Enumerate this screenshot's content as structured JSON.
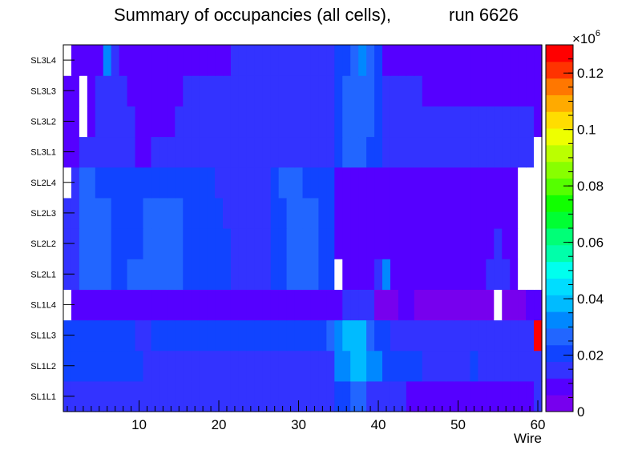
{
  "chart_data": {
    "type": "heatmap",
    "title": "Summary of occupancies (all cells),",
    "run_label": "run 6626",
    "xlabel": "Wire",
    "ylabel": "",
    "x_range": [
      0.5,
      60.5
    ],
    "x_ticks": [
      "10",
      "20",
      "30",
      "40",
      "50",
      "60"
    ],
    "rows": [
      "SL1L1",
      "SL1L2",
      "SL1L3",
      "SL1L4",
      "SL2L1",
      "SL2L2",
      "SL2L3",
      "SL2L4",
      "SL3L1",
      "SL3L2",
      "SL3L3",
      "SL3L4"
    ],
    "z_range": [
      0,
      130000
    ],
    "z_multiplier": "×10",
    "z_exponent": "6",
    "z_ticks": [
      "0",
      "0.02",
      "0.04",
      "0.06",
      "0.08",
      "0.1",
      "0.12"
    ],
    "palette": [
      "#7700ee",
      "#5500ff",
      "#3333ff",
      "#1144ff",
      "#2266ff",
      "#0088ff",
      "#00bbff",
      "#00ddff",
      "#00ffee",
      "#00ffaa",
      "#00ff77",
      "#00ff33",
      "#11ff00",
      "#55ff00",
      "#88ff00",
      "#bbff00",
      "#eeff00",
      "#ffdd00",
      "#ffaa00",
      "#ff7700",
      "#ff3300",
      "#ff0000"
    ],
    "zero_color": "#ffffff",
    "values": [
      [
        15000,
        15000,
        15000,
        15000,
        15000,
        15000,
        15000,
        12000,
        12000,
        12000,
        12000,
        12000,
        12000,
        12000,
        12000,
        12000,
        12000,
        12000,
        12000,
        12000,
        12000,
        12000,
        12000,
        12000,
        12000,
        12000,
        12000,
        12000,
        12000,
        12000,
        12000,
        12000,
        12000,
        12000,
        20000,
        20000,
        24000,
        26000,
        15000,
        12000,
        12000,
        12000,
        12000,
        8000,
        8000,
        8000,
        8000,
        8000,
        8000,
        8000,
        8000,
        8000,
        8000,
        8000,
        8000,
        8000,
        8000,
        10000,
        10000,
        12000
      ],
      [
        20000,
        20000,
        20000,
        20000,
        20000,
        20000,
        20000,
        20000,
        20000,
        20000,
        15000,
        15000,
        15000,
        15000,
        15000,
        15000,
        15000,
        15000,
        15000,
        15000,
        15000,
        15000,
        15000,
        15000,
        15000,
        15000,
        15000,
        15000,
        15000,
        15000,
        15000,
        15000,
        15000,
        15000,
        30000,
        30000,
        38000,
        38000,
        30000,
        30000,
        20000,
        20000,
        20000,
        20000,
        20000,
        15000,
        15000,
        15000,
        15000,
        15000,
        15000,
        20000,
        15000,
        15000,
        15000,
        15000,
        15000,
        15000,
        15000,
        15000
      ],
      [
        20000,
        20000,
        20000,
        20000,
        20000,
        20000,
        20000,
        20000,
        20000,
        15000,
        15000,
        20000,
        20000,
        20000,
        20000,
        20000,
        20000,
        20000,
        20000,
        20000,
        20000,
        20000,
        20000,
        20000,
        20000,
        20000,
        20000,
        20000,
        20000,
        20000,
        20000,
        20000,
        20000,
        25000,
        30000,
        38000,
        38000,
        38000,
        28000,
        20000,
        20000,
        15000,
        15000,
        15000,
        15000,
        15000,
        15000,
        15000,
        15000,
        15000,
        15000,
        15000,
        15000,
        15000,
        15000,
        15000,
        15000,
        15000,
        15000,
        130000
      ],
      [
        0,
        8000,
        8000,
        8000,
        8000,
        8000,
        8000,
        8000,
        8000,
        8000,
        8000,
        8000,
        8000,
        8000,
        8000,
        8000,
        8000,
        8000,
        8000,
        8000,
        8000,
        8000,
        8000,
        8000,
        8000,
        8000,
        8000,
        8000,
        8000,
        8000,
        8000,
        8000,
        8000,
        8000,
        8000,
        12000,
        12000,
        12000,
        12000,
        5000,
        5000,
        5000,
        8000,
        8000,
        5000,
        5000,
        5000,
        5000,
        5000,
        5000,
        5000,
        5000,
        5000,
        5000,
        0,
        5000,
        5000,
        5000,
        8000,
        8000
      ],
      [
        15000,
        15000,
        25000,
        25000,
        25000,
        25000,
        20000,
        20000,
        25000,
        25000,
        25000,
        25000,
        25000,
        25000,
        25000,
        20000,
        20000,
        20000,
        20000,
        20000,
        20000,
        12000,
        12000,
        12000,
        12000,
        12000,
        20000,
        20000,
        25000,
        25000,
        25000,
        25000,
        20000,
        20000,
        0,
        8000,
        8000,
        8000,
        8000,
        12000,
        30000,
        8000,
        8000,
        8000,
        8000,
        8000,
        8000,
        8000,
        8000,
        8000,
        8000,
        8000,
        8000,
        12000,
        12000,
        15000,
        8000,
        0,
        0,
        0
      ],
      [
        15000,
        15000,
        25000,
        25000,
        25000,
        25000,
        20000,
        20000,
        20000,
        20000,
        25000,
        25000,
        25000,
        25000,
        25000,
        20000,
        20000,
        20000,
        20000,
        20000,
        20000,
        12000,
        12000,
        12000,
        12000,
        12000,
        20000,
        20000,
        25000,
        25000,
        25000,
        25000,
        20000,
        20000,
        8000,
        8000,
        8000,
        8000,
        8000,
        8000,
        8000,
        8000,
        8000,
        8000,
        8000,
        8000,
        8000,
        8000,
        8000,
        8000,
        8000,
        8000,
        8000,
        8000,
        12000,
        8000,
        8000,
        0,
        0,
        0
      ],
      [
        12000,
        15000,
        25000,
        25000,
        25000,
        25000,
        20000,
        20000,
        20000,
        20000,
        25000,
        25000,
        25000,
        25000,
        25000,
        20000,
        20000,
        20000,
        20000,
        20000,
        12000,
        12000,
        12000,
        12000,
        12000,
        12000,
        20000,
        20000,
        25000,
        25000,
        25000,
        25000,
        20000,
        20000,
        8000,
        8000,
        8000,
        8000,
        8000,
        8000,
        8000,
        8000,
        8000,
        8000,
        8000,
        8000,
        8000,
        8000,
        8000,
        8000,
        8000,
        8000,
        8000,
        8000,
        8000,
        8000,
        8000,
        0,
        0,
        0
      ],
      [
        0,
        15000,
        25000,
        25000,
        20000,
        20000,
        20000,
        20000,
        20000,
        20000,
        20000,
        20000,
        20000,
        20000,
        20000,
        20000,
        20000,
        20000,
        20000,
        12000,
        12000,
        12000,
        12000,
        12000,
        12000,
        12000,
        20000,
        25000,
        25000,
        25000,
        20000,
        20000,
        20000,
        20000,
        8000,
        8000,
        8000,
        8000,
        8000,
        8000,
        8000,
        8000,
        8000,
        8000,
        8000,
        8000,
        8000,
        8000,
        8000,
        8000,
        8000,
        8000,
        8000,
        8000,
        8000,
        8000,
        8000,
        0,
        0,
        0
      ],
      [
        8000,
        8000,
        12000,
        12000,
        12000,
        12000,
        12000,
        12000,
        12000,
        8000,
        8000,
        12000,
        12000,
        12000,
        12000,
        12000,
        12000,
        12000,
        12000,
        12000,
        12000,
        12000,
        12000,
        12000,
        12000,
        12000,
        12000,
        12000,
        12000,
        12000,
        12000,
        12000,
        12000,
        15000,
        20000,
        25000,
        25000,
        25000,
        20000,
        20000,
        15000,
        12000,
        12000,
        12000,
        12000,
        12000,
        12000,
        12000,
        12000,
        12000,
        12000,
        12000,
        12000,
        12000,
        12000,
        15000,
        12000,
        12000,
        12000,
        0
      ],
      [
        8000,
        8000,
        0,
        8000,
        12000,
        12000,
        12000,
        12000,
        12000,
        8000,
        8000,
        8000,
        8000,
        8000,
        12000,
        12000,
        12000,
        12000,
        12000,
        12000,
        12000,
        12000,
        12000,
        12000,
        12000,
        12000,
        12000,
        12000,
        12000,
        12000,
        12000,
        12000,
        12000,
        12000,
        20000,
        25000,
        25000,
        25000,
        25000,
        20000,
        15000,
        15000,
        12000,
        12000,
        12000,
        12000,
        12000,
        12000,
        12000,
        12000,
        12000,
        12000,
        12000,
        12000,
        12000,
        12000,
        12000,
        12000,
        12000,
        8000
      ],
      [
        8000,
        8000,
        0,
        8000,
        12000,
        12000,
        12000,
        12000,
        8000,
        8000,
        8000,
        8000,
        8000,
        8000,
        8000,
        12000,
        12000,
        12000,
        12000,
        12000,
        12000,
        12000,
        12000,
        12000,
        12000,
        12000,
        12000,
        12000,
        12000,
        12000,
        12000,
        12000,
        12000,
        15000,
        20000,
        25000,
        25000,
        25000,
        25000,
        20000,
        15000,
        15000,
        12000,
        12000,
        12000,
        8000,
        8000,
        8000,
        8000,
        8000,
        8000,
        8000,
        8000,
        8000,
        8000,
        8000,
        8000,
        8000,
        8000,
        8000
      ],
      [
        0,
        8000,
        8000,
        8000,
        8000,
        30000,
        12000,
        8000,
        8000,
        8000,
        8000,
        8000,
        8000,
        8000,
        8000,
        8000,
        8000,
        8000,
        8000,
        8000,
        8000,
        12000,
        12000,
        12000,
        12000,
        12000,
        12000,
        12000,
        12000,
        12000,
        12000,
        12000,
        12000,
        12000,
        20000,
        20000,
        25000,
        30000,
        25000,
        20000,
        8000,
        8000,
        8000,
        8000,
        8000,
        8000,
        8000,
        8000,
        8000,
        8000,
        8000,
        8000,
        8000,
        8000,
        8000,
        8000,
        8000,
        8000,
        8000,
        8000
      ]
    ]
  }
}
